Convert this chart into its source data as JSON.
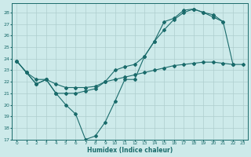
{
  "xlabel": "Humidex (Indice chaleur)",
  "ylabel": "",
  "background_color": "#cdeaea",
  "line_color": "#1a6b6b",
  "grid_color": "#aecece",
  "xlim": [
    -0.5,
    23.5
  ],
  "ylim": [
    17,
    28.8
  ],
  "yticks": [
    17,
    18,
    19,
    20,
    21,
    22,
    23,
    24,
    25,
    26,
    27,
    28
  ],
  "xticks": [
    0,
    1,
    2,
    3,
    4,
    5,
    6,
    7,
    8,
    9,
    10,
    11,
    12,
    13,
    14,
    15,
    16,
    17,
    18,
    19,
    20,
    21,
    22,
    23
  ],
  "line1_x": [
    0,
    1,
    2,
    3,
    4,
    5,
    6,
    7,
    8,
    9,
    10,
    11,
    12,
    13,
    14,
    15,
    16,
    17,
    18,
    19,
    20,
    21,
    22,
    23
  ],
  "line1_y": [
    23.8,
    22.8,
    21.8,
    22.2,
    21.0,
    20.0,
    19.2,
    17.0,
    17.3,
    18.5,
    20.3,
    22.2,
    22.2,
    24.2,
    25.5,
    27.2,
    27.5,
    28.2,
    28.3,
    28.0,
    27.8,
    27.2,
    23.5,
    null
  ],
  "line2_x": [
    0,
    1,
    2,
    3,
    4,
    5,
    6,
    7,
    8,
    9,
    10,
    11,
    12,
    13,
    14,
    15,
    16,
    17,
    18,
    19,
    20,
    21,
    22,
    23
  ],
  "line2_y": [
    23.8,
    22.8,
    22.2,
    22.2,
    21.8,
    21.5,
    21.5,
    21.5,
    21.6,
    22.0,
    22.2,
    22.4,
    22.6,
    22.8,
    23.0,
    23.2,
    23.4,
    23.5,
    23.6,
    23.7,
    23.7,
    23.6,
    23.5,
    23.5
  ],
  "line3_x": [
    0,
    1,
    2,
    3,
    4,
    5,
    6,
    7,
    8,
    9,
    10,
    11,
    12,
    13,
    14,
    15,
    16,
    17,
    18,
    19,
    20,
    21,
    22,
    23
  ],
  "line3_y": [
    23.8,
    22.8,
    21.8,
    22.2,
    21.0,
    21.0,
    21.0,
    21.2,
    21.4,
    22.0,
    23.0,
    23.3,
    23.5,
    24.2,
    25.5,
    26.5,
    27.4,
    28.0,
    28.3,
    28.0,
    27.6,
    27.2,
    null,
    null
  ]
}
